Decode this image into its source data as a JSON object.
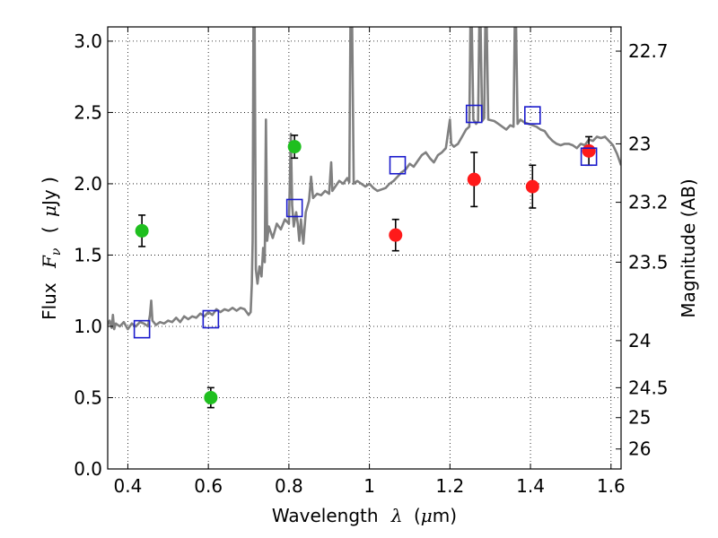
{
  "chart_data": {
    "type": "scatter",
    "xlabel": {
      "text": "Wavelength",
      "symbol": "λ",
      "unit_prefix": "(",
      "unit_mu": "μ",
      "unit_suffix": "m)"
    },
    "ylabel": {
      "text": "Flux",
      "symbol": "F",
      "subscript": "ν",
      "unit_prefix": "(",
      "unit_mu": "μ",
      "unit_suffix": "Jy )"
    },
    "y2label": "Magnitude (AB)",
    "xlim": [
      0.35,
      1.625
    ],
    "ylim": [
      0.0,
      3.1
    ],
    "grid": true,
    "x_ticks": [
      {
        "value": 0.4,
        "label": "0.4"
      },
      {
        "value": 0.6,
        "label": "0.6"
      },
      {
        "value": 0.8,
        "label": "0.8"
      },
      {
        "value": 1.0,
        "label": "1"
      },
      {
        "value": 1.2,
        "label": "1.2"
      },
      {
        "value": 1.4,
        "label": "1.4"
      },
      {
        "value": 1.6,
        "label": "1.6"
      }
    ],
    "y_ticks": [
      {
        "value": 0.0,
        "label": "0.0"
      },
      {
        "value": 0.5,
        "label": "0.5"
      },
      {
        "value": 1.0,
        "label": "1.0"
      },
      {
        "value": 1.5,
        "label": "1.5"
      },
      {
        "value": 2.0,
        "label": "2.0"
      },
      {
        "value": 2.5,
        "label": "2.5"
      },
      {
        "value": 3.0,
        "label": "3.0"
      }
    ],
    "y2_ticks": [
      {
        "flux": 2.93,
        "label": "22.7"
      },
      {
        "flux": 2.28,
        "label": "23"
      },
      {
        "flux": 1.87,
        "label": "23.2"
      },
      {
        "flux": 1.45,
        "label": "23.5"
      },
      {
        "flux": 0.9,
        "label": "24"
      },
      {
        "flux": 0.57,
        "label": "24.5"
      },
      {
        "flux": 0.36,
        "label": "25"
      },
      {
        "flux": 0.14,
        "label": "26"
      }
    ],
    "series": [
      {
        "marker": "circle",
        "color": "#1fbf1f",
        "points": [
          {
            "x": 0.435,
            "y": 1.67,
            "err": 0.11
          },
          {
            "x": 0.606,
            "y": 0.5,
            "err": 0.07
          },
          {
            "x": 0.814,
            "y": 2.26,
            "err": 0.08
          }
        ]
      },
      {
        "marker": "circle",
        "color": "#ff1a1a",
        "points": [
          {
            "x": 1.065,
            "y": 1.64,
            "err": 0.11
          },
          {
            "x": 1.26,
            "y": 2.03,
            "err": 0.19
          },
          {
            "x": 1.405,
            "y": 1.98,
            "err": 0.15
          },
          {
            "x": 1.545,
            "y": 2.23,
            "err": 0.1
          }
        ]
      },
      {
        "marker": "open-square",
        "color": "#1a1acc",
        "points": [
          {
            "x": 0.435,
            "y": 0.98
          },
          {
            "x": 0.606,
            "y": 1.05
          },
          {
            "x": 0.814,
            "y": 1.83
          },
          {
            "x": 1.07,
            "y": 2.13
          },
          {
            "x": 1.26,
            "y": 2.49
          },
          {
            "x": 1.405,
            "y": 2.48
          },
          {
            "x": 1.545,
            "y": 2.19
          }
        ]
      }
    ],
    "model_spectrum": {
      "type": "line",
      "color": "#808080",
      "points": [
        [
          0.35,
          1.01
        ],
        [
          0.355,
          1.04
        ],
        [
          0.36,
          0.99
        ],
        [
          0.363,
          1.08
        ],
        [
          0.366,
          0.98
        ],
        [
          0.37,
          1.02
        ],
        [
          0.38,
          1.0
        ],
        [
          0.39,
          1.03
        ],
        [
          0.4,
          0.98
        ],
        [
          0.41,
          1.02
        ],
        [
          0.42,
          1.0
        ],
        [
          0.43,
          1.03
        ],
        [
          0.44,
          1.02
        ],
        [
          0.45,
          1.0
        ],
        [
          0.455,
          1.08
        ],
        [
          0.458,
          1.18
        ],
        [
          0.461,
          1.04
        ],
        [
          0.47,
          1.01
        ],
        [
          0.48,
          1.03
        ],
        [
          0.49,
          1.02
        ],
        [
          0.5,
          1.04
        ],
        [
          0.51,
          1.03
        ],
        [
          0.52,
          1.06
        ],
        [
          0.53,
          1.03
        ],
        [
          0.54,
          1.07
        ],
        [
          0.55,
          1.05
        ],
        [
          0.56,
          1.07
        ],
        [
          0.57,
          1.06
        ],
        [
          0.58,
          1.09
        ],
        [
          0.59,
          1.07
        ],
        [
          0.6,
          1.1
        ],
        [
          0.61,
          1.08
        ],
        [
          0.62,
          1.12
        ],
        [
          0.63,
          1.1
        ],
        [
          0.64,
          1.12
        ],
        [
          0.65,
          1.11
        ],
        [
          0.66,
          1.13
        ],
        [
          0.67,
          1.11
        ],
        [
          0.68,
          1.13
        ],
        [
          0.69,
          1.12
        ],
        [
          0.7,
          1.08
        ],
        [
          0.705,
          1.1
        ],
        [
          0.708,
          1.3
        ],
        [
          0.71,
          1.6
        ],
        [
          0.712,
          3.15
        ],
        [
          0.715,
          3.15
        ],
        [
          0.718,
          1.4
        ],
        [
          0.722,
          1.3
        ],
        [
          0.727,
          1.42
        ],
        [
          0.732,
          1.35
        ],
        [
          0.736,
          1.55
        ],
        [
          0.74,
          1.45
        ],
        [
          0.743,
          2.45
        ],
        [
          0.746,
          1.6
        ],
        [
          0.75,
          1.7
        ],
        [
          0.76,
          1.62
        ],
        [
          0.77,
          1.72
        ],
        [
          0.78,
          1.68
        ],
        [
          0.79,
          1.75
        ],
        [
          0.8,
          1.72
        ],
        [
          0.805,
          2.35
        ],
        [
          0.808,
          1.85
        ],
        [
          0.812,
          1.7
        ],
        [
          0.818,
          1.8
        ],
        [
          0.822,
          1.72
        ],
        [
          0.826,
          1.6
        ],
        [
          0.83,
          1.75
        ],
        [
          0.836,
          1.58
        ],
        [
          0.842,
          1.8
        ],
        [
          0.85,
          1.88
        ],
        [
          0.855,
          2.05
        ],
        [
          0.86,
          1.9
        ],
        [
          0.87,
          1.93
        ],
        [
          0.88,
          1.92
        ],
        [
          0.89,
          1.95
        ],
        [
          0.9,
          1.93
        ],
        [
          0.905,
          2.15
        ],
        [
          0.908,
          1.95
        ],
        [
          0.915,
          1.98
        ],
        [
          0.925,
          2.02
        ],
        [
          0.935,
          2.0
        ],
        [
          0.945,
          2.04
        ],
        [
          0.95,
          2.01
        ],
        [
          0.953,
          3.15
        ],
        [
          0.957,
          3.15
        ],
        [
          0.961,
          2.0
        ],
        [
          0.97,
          2.02
        ],
        [
          0.98,
          2.0
        ],
        [
          0.99,
          1.98
        ],
        [
          1.0,
          2.0
        ],
        [
          1.01,
          1.97
        ],
        [
          1.02,
          1.95
        ],
        [
          1.03,
          1.96
        ],
        [
          1.04,
          1.97
        ],
        [
          1.05,
          2.0
        ],
        [
          1.06,
          2.02
        ],
        [
          1.07,
          2.05
        ],
        [
          1.08,
          2.08
        ],
        [
          1.09,
          2.1
        ],
        [
          1.1,
          2.14
        ],
        [
          1.11,
          2.12
        ],
        [
          1.12,
          2.16
        ],
        [
          1.13,
          2.2
        ],
        [
          1.14,
          2.22
        ],
        [
          1.15,
          2.18
        ],
        [
          1.16,
          2.15
        ],
        [
          1.17,
          2.2
        ],
        [
          1.18,
          2.22
        ],
        [
          1.19,
          2.25
        ],
        [
          1.2,
          2.45
        ],
        [
          1.203,
          2.28
        ],
        [
          1.21,
          2.26
        ],
        [
          1.22,
          2.28
        ],
        [
          1.23,
          2.33
        ],
        [
          1.24,
          2.38
        ],
        [
          1.248,
          2.4
        ],
        [
          1.251,
          3.15
        ],
        [
          1.254,
          3.15
        ],
        [
          1.258,
          2.45
        ],
        [
          1.265,
          2.42
        ],
        [
          1.27,
          2.44
        ],
        [
          1.273,
          3.15
        ],
        [
          1.276,
          3.15
        ],
        [
          1.28,
          2.44
        ],
        [
          1.285,
          2.46
        ],
        [
          1.288,
          3.15
        ],
        [
          1.291,
          3.15
        ],
        [
          1.295,
          2.45
        ],
        [
          1.31,
          2.44
        ],
        [
          1.32,
          2.42
        ],
        [
          1.33,
          2.4
        ],
        [
          1.34,
          2.38
        ],
        [
          1.35,
          2.41
        ],
        [
          1.358,
          2.4
        ],
        [
          1.361,
          3.15
        ],
        [
          1.364,
          3.15
        ],
        [
          1.368,
          2.42
        ],
        [
          1.375,
          2.45
        ],
        [
          1.385,
          2.43
        ],
        [
          1.395,
          2.42
        ],
        [
          1.405,
          2.41
        ],
        [
          1.415,
          2.4
        ],
        [
          1.425,
          2.38
        ],
        [
          1.435,
          2.37
        ],
        [
          1.445,
          2.33
        ],
        [
          1.455,
          2.3
        ],
        [
          1.465,
          2.28
        ],
        [
          1.475,
          2.27
        ],
        [
          1.485,
          2.28
        ],
        [
          1.495,
          2.28
        ],
        [
          1.505,
          2.27
        ],
        [
          1.515,
          2.25
        ],
        [
          1.525,
          2.28
        ],
        [
          1.535,
          2.27
        ],
        [
          1.545,
          2.31
        ],
        [
          1.555,
          2.3
        ],
        [
          1.565,
          2.33
        ],
        [
          1.575,
          2.32
        ],
        [
          1.585,
          2.33
        ],
        [
          1.595,
          2.3
        ],
        [
          1.605,
          2.27
        ],
        [
          1.615,
          2.21
        ],
        [
          1.625,
          2.13
        ]
      ]
    }
  }
}
